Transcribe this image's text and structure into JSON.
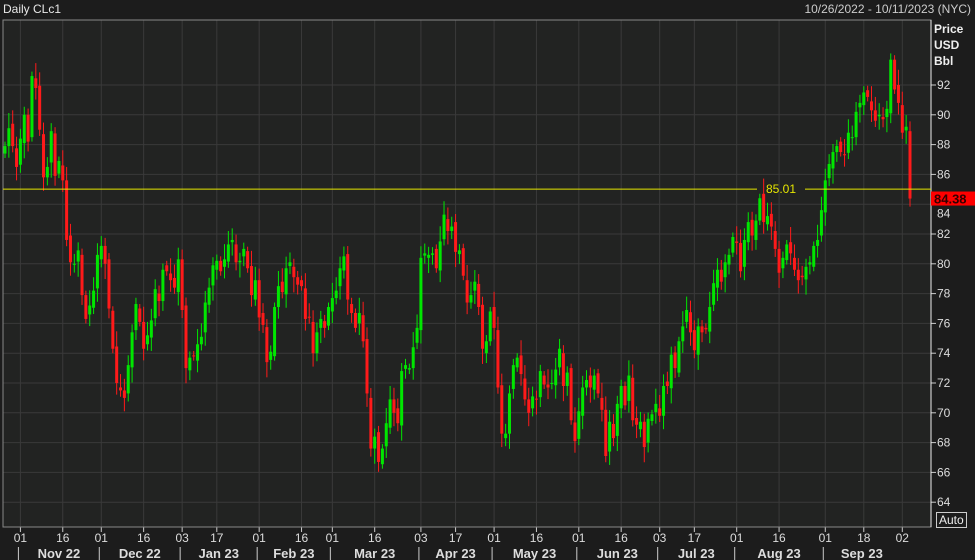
{
  "header": {
    "title": "Daily CLc1",
    "range": "10/26/2022 - 10/11/2023 (NYC)"
  },
  "axis": {
    "unit_lines": [
      "Price",
      "USD",
      "Bbl"
    ],
    "auto_button": "Auto"
  },
  "colors": {
    "up": "#00e600",
    "down": "#ff1a1a",
    "reference_line": "#e6e600",
    "last_price_bg": "#ff0000",
    "grid": "#3a3a3a",
    "plot_bg": "#222322"
  },
  "chart_data": {
    "type": "candlestick",
    "title": "Daily CLc1",
    "ylabel": "Price USD Bbl",
    "ylim": [
      62.5,
      96.5
    ],
    "yticks": [
      64,
      66,
      68,
      70,
      72,
      74,
      76,
      78,
      80,
      82,
      84,
      86,
      88,
      90,
      92
    ],
    "grid": true,
    "reference_line": {
      "value": 85.01,
      "label": "85.01"
    },
    "last_price": {
      "value": 84.38,
      "label": "84.38"
    },
    "xticks": [
      [
        "2022-11-01",
        "01"
      ],
      [
        "2022-11-16",
        "16"
      ],
      [
        "2022-12-01",
        "01"
      ],
      [
        "2022-12-16",
        "16"
      ],
      [
        "2023-01-03",
        "03"
      ],
      [
        "2023-01-17",
        "17"
      ],
      [
        "2023-02-01",
        "01"
      ],
      [
        "2023-02-16",
        "16"
      ],
      [
        "2023-03-01",
        "01"
      ],
      [
        "2023-03-16",
        "16"
      ],
      [
        "2023-04-03",
        "03"
      ],
      [
        "2023-04-17",
        "17"
      ],
      [
        "2023-05-01",
        "01"
      ],
      [
        "2023-05-16",
        "16"
      ],
      [
        "2023-06-01",
        "01"
      ],
      [
        "2023-06-16",
        "16"
      ],
      [
        "2023-07-03",
        "03"
      ],
      [
        "2023-07-17",
        "17"
      ],
      [
        "2023-08-01",
        "01"
      ],
      [
        "2023-08-16",
        "16"
      ],
      [
        "2023-09-01",
        "01"
      ],
      [
        "2023-09-18",
        "18"
      ],
      [
        "2023-10-02",
        "02"
      ]
    ],
    "months": [
      [
        "2022-11",
        "Nov 22"
      ],
      [
        "2022-12",
        "Dec 22"
      ],
      [
        "2023-01",
        "Jan 23"
      ],
      [
        "2023-02",
        "Feb 23"
      ],
      [
        "2023-03",
        "Mar 23"
      ],
      [
        "2023-04",
        "Apr 23"
      ],
      [
        "2023-05",
        "May 23"
      ],
      [
        "2023-06",
        "Jun 23"
      ],
      [
        "2023-07",
        "Jul 23"
      ],
      [
        "2023-08",
        "Aug 23"
      ],
      [
        "2023-09",
        "Sep 23"
      ]
    ],
    "dates": [
      "2022-10-26",
      "2022-10-27",
      "2022-10-28",
      "2022-10-31",
      "2022-11-01",
      "2022-11-02",
      "2022-11-03",
      "2022-11-04",
      "2022-11-07",
      "2022-11-08",
      "2022-11-09",
      "2022-11-10",
      "2022-11-11",
      "2022-11-14",
      "2022-11-15",
      "2022-11-16",
      "2022-11-17",
      "2022-11-18",
      "2022-11-21",
      "2022-11-22",
      "2022-11-23",
      "2022-11-25",
      "2022-11-28",
      "2022-11-29",
      "2022-11-30",
      "2022-12-01",
      "2022-12-02",
      "2022-12-05",
      "2022-12-06",
      "2022-12-07",
      "2022-12-08",
      "2022-12-09",
      "2022-12-12",
      "2022-12-13",
      "2022-12-14",
      "2022-12-15",
      "2022-12-16",
      "2022-12-19",
      "2022-12-20",
      "2022-12-21",
      "2022-12-22",
      "2022-12-23",
      "2022-12-27",
      "2022-12-28",
      "2022-12-29",
      "2022-12-30",
      "2023-01-03",
      "2023-01-04",
      "2023-01-05",
      "2023-01-06",
      "2023-01-09",
      "2023-01-10",
      "2023-01-11",
      "2023-01-12",
      "2023-01-13",
      "2023-01-17",
      "2023-01-18",
      "2023-01-19",
      "2023-01-20",
      "2023-01-23",
      "2023-01-24",
      "2023-01-25",
      "2023-01-26",
      "2023-01-27",
      "2023-01-30",
      "2023-01-31",
      "2023-02-01",
      "2023-02-02",
      "2023-02-03",
      "2023-02-06",
      "2023-02-07",
      "2023-02-08",
      "2023-02-09",
      "2023-02-10",
      "2023-02-13",
      "2023-02-14",
      "2023-02-15",
      "2023-02-16",
      "2023-02-17",
      "2023-02-21",
      "2023-02-22",
      "2023-02-23",
      "2023-02-24",
      "2023-02-27",
      "2023-02-28",
      "2023-03-01",
      "2023-03-02",
      "2023-03-03",
      "2023-03-06",
      "2023-03-07",
      "2023-03-08",
      "2023-03-09",
      "2023-03-10",
      "2023-03-13",
      "2023-03-14",
      "2023-03-15",
      "2023-03-16",
      "2023-03-17",
      "2023-03-20",
      "2023-03-21",
      "2023-03-22",
      "2023-03-23",
      "2023-03-24",
      "2023-03-27",
      "2023-03-28",
      "2023-03-29",
      "2023-03-30",
      "2023-03-31",
      "2023-04-03",
      "2023-04-04",
      "2023-04-05",
      "2023-04-06",
      "2023-04-10",
      "2023-04-11",
      "2023-04-12",
      "2023-04-13",
      "2023-04-14",
      "2023-04-17",
      "2023-04-18",
      "2023-04-19",
      "2023-04-20",
      "2023-04-21",
      "2023-04-24",
      "2023-04-25",
      "2023-04-26",
      "2023-04-27",
      "2023-04-28",
      "2023-05-01",
      "2023-05-02",
      "2023-05-03",
      "2023-05-04",
      "2023-05-05",
      "2023-05-08",
      "2023-05-09",
      "2023-05-10",
      "2023-05-11",
      "2023-05-12",
      "2023-05-15",
      "2023-05-16",
      "2023-05-17",
      "2023-05-18",
      "2023-05-19",
      "2023-05-22",
      "2023-05-23",
      "2023-05-24",
      "2023-05-25",
      "2023-05-26",
      "2023-05-30",
      "2023-05-31",
      "2023-06-01",
      "2023-06-02",
      "2023-06-05",
      "2023-06-06",
      "2023-06-07",
      "2023-06-08",
      "2023-06-09",
      "2023-06-12",
      "2023-06-13",
      "2023-06-14",
      "2023-06-15",
      "2023-06-16",
      "2023-06-20",
      "2023-06-21",
      "2023-06-22",
      "2023-06-23",
      "2023-06-26",
      "2023-06-27",
      "2023-06-28",
      "2023-06-29",
      "2023-06-30",
      "2023-07-03",
      "2023-07-05",
      "2023-07-06",
      "2023-07-07",
      "2023-07-10",
      "2023-07-11",
      "2023-07-12",
      "2023-07-13",
      "2023-07-14",
      "2023-07-17",
      "2023-07-18",
      "2023-07-19",
      "2023-07-20",
      "2023-07-21",
      "2023-07-24",
      "2023-07-25",
      "2023-07-26",
      "2023-07-27",
      "2023-07-28",
      "2023-07-31",
      "2023-08-01",
      "2023-08-02",
      "2023-08-03",
      "2023-08-04",
      "2023-08-07",
      "2023-08-08",
      "2023-08-09",
      "2023-08-10",
      "2023-08-11",
      "2023-08-14",
      "2023-08-15",
      "2023-08-16",
      "2023-08-17",
      "2023-08-18",
      "2023-08-21",
      "2023-08-22",
      "2023-08-23",
      "2023-08-24",
      "2023-08-25",
      "2023-08-28",
      "2023-08-29",
      "2023-08-30",
      "2023-08-31",
      "2023-09-01",
      "2023-09-05",
      "2023-09-06",
      "2023-09-07",
      "2023-09-08",
      "2023-09-11",
      "2023-09-12",
      "2023-09-13",
      "2023-09-14",
      "2023-09-15",
      "2023-09-18",
      "2023-09-19",
      "2023-09-20",
      "2023-09-21",
      "2023-09-22",
      "2023-09-25",
      "2023-09-26",
      "2023-09-27",
      "2023-09-28",
      "2023-09-29",
      "2023-10-02",
      "2023-10-03",
      "2023-10-04"
    ],
    "close": [
      87.9,
      89.1,
      87.9,
      86.5,
      88.4,
      90.0,
      88.2,
      92.6,
      91.8,
      89.0,
      85.8,
      86.5,
      88.9,
      85.9,
      86.9,
      85.6,
      81.6,
      80.1,
      80.0,
      80.9,
      77.9,
      76.3,
      77.2,
      78.2,
      80.6,
      81.2,
      80.0,
      77.0,
      74.3,
      72.0,
      71.5,
      71.0,
      73.2,
      75.4,
      77.3,
      76.1,
      74.3,
      75.2,
      76.2,
      78.3,
      77.5,
      79.6,
      79.5,
      78.9,
      78.4,
      80.3,
      76.9,
      73.0,
      73.7,
      73.8,
      74.6,
      75.1,
      77.4,
      78.4,
      79.9,
      80.2,
      79.5,
      80.3,
      81.3,
      81.6,
      80.1,
      80.2,
      81.0,
      79.7,
      77.9,
      78.9,
      76.4,
      75.9,
      73.4,
      74.1,
      77.1,
      78.5,
      78.1,
      79.7,
      80.1,
      79.1,
      78.6,
      78.5,
      76.3,
      76.4,
      74.0,
      75.4,
      76.3,
      75.7,
      77.1,
      77.7,
      78.2,
      79.7,
      80.5,
      77.6,
      76.7,
      75.7,
      76.7,
      74.8,
      71.3,
      67.6,
      68.4,
      66.7,
      67.6,
      69.3,
      70.9,
      70.0,
      69.3,
      72.8,
      73.2,
      73.0,
      74.4,
      75.7,
      80.4,
      80.7,
      80.6,
      80.7,
      79.7,
      81.5,
      83.3,
      82.2,
      82.5,
      80.8,
      80.9,
      79.2,
      77.4,
      77.9,
      78.8,
      77.1,
      74.3,
      74.8,
      76.8,
      75.7,
      71.7,
      68.6,
      68.6,
      71.3,
      73.2,
      73.7,
      72.6,
      70.9,
      70.0,
      71.1,
      70.9,
      72.8,
      71.9,
      71.7,
      72.0,
      72.9,
      74.3,
      71.8,
      72.7,
      69.5,
      68.1,
      70.1,
      71.7,
      72.2,
      71.7,
      72.5,
      71.3,
      70.2,
      67.1,
      69.4,
      68.3,
      70.6,
      71.8,
      70.5,
      72.5,
      69.5,
      69.2,
      69.4,
      67.7,
      69.6,
      69.9,
      70.6,
      69.8,
      71.8,
      71.8,
      73.9,
      73.0,
      74.8,
      75.8,
      76.9,
      75.4,
      74.2,
      75.8,
      75.4,
      75.6,
      77.1,
      78.7,
      79.6,
      78.8,
      80.1,
      80.6,
      81.8,
      81.4,
      79.5,
      81.6,
      82.8,
      81.9,
      82.9,
      84.4,
      82.8,
      83.2,
      82.5,
      81.0,
      79.4,
      80.4,
      81.3,
      80.7,
      79.6,
      78.9,
      79.1,
      79.8,
      80.1,
      81.2,
      81.6,
      83.6,
      85.6,
      86.7,
      87.5,
      87.9,
      87.5,
      87.3,
      88.8,
      88.5,
      90.2,
      90.8,
      91.5,
      91.2,
      90.3,
      89.6,
      90.0,
      89.7,
      90.4,
      93.7,
      91.7,
      90.8,
      88.8,
      89.2,
      84.38
    ]
  }
}
